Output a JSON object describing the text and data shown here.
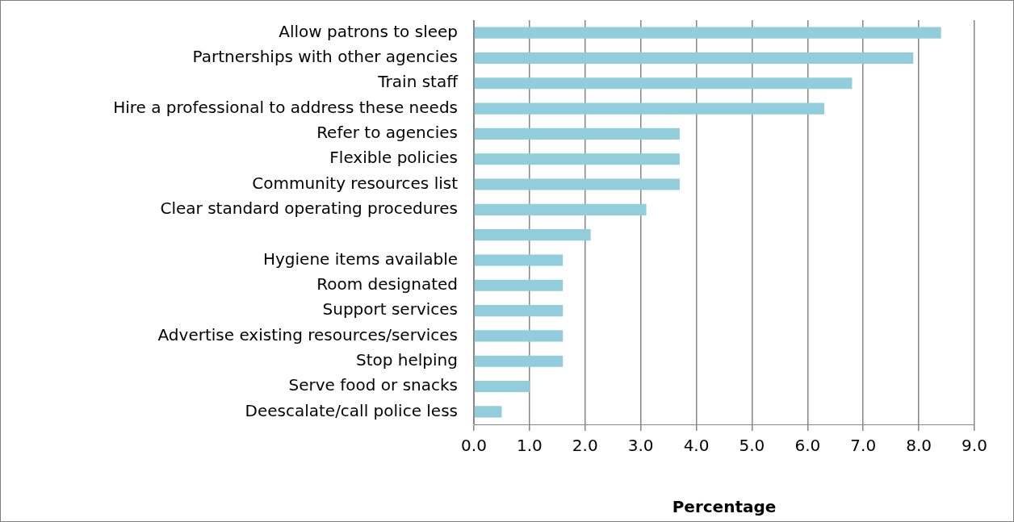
{
  "chart_data": {
    "type": "bar",
    "orientation": "horizontal",
    "xlabel": "Percentage",
    "categories": [
      "Allow patrons to sleep",
      "Partnerships with other agencies",
      "Train staff",
      "Hire a professional to address these needs",
      "Refer to agencies",
      "Flexible policies",
      "Community resources list",
      "Clear standard operating procedures",
      null,
      "Hygiene items available",
      "Room designated",
      "Support services",
      "Advertise existing resources/services",
      "Stop helping",
      "Serve food or snacks",
      "Deescalate/call police less"
    ],
    "values": [
      8.4,
      7.9,
      6.8,
      6.3,
      3.7,
      3.7,
      3.7,
      3.1,
      2.1,
      1.6,
      1.6,
      1.6,
      1.6,
      1.6,
      1.0,
      0.5
    ],
    "color": "#92cddc",
    "xlim": [
      0,
      9
    ],
    "xticks": [
      {
        "value": 0,
        "label": "0.0"
      },
      {
        "value": 1,
        "label": "1.0"
      },
      {
        "value": 2,
        "label": "2.0"
      },
      {
        "value": 3,
        "label": "3.0"
      },
      {
        "value": 4,
        "label": "4.0"
      },
      {
        "value": 5,
        "label": "5.0"
      },
      {
        "value": 6,
        "label": "6.0"
      },
      {
        "value": 7,
        "label": "7.0"
      },
      {
        "value": 8,
        "label": "8.0"
      },
      {
        "value": 9,
        "label": "9.0"
      }
    ],
    "grid": "x",
    "legend": false
  }
}
